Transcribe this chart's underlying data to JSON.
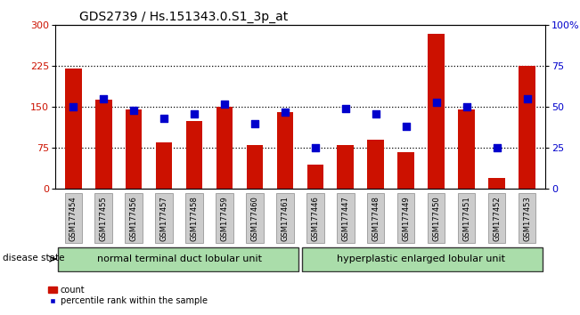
{
  "title": "GDS2739 / Hs.151343.0.S1_3p_at",
  "samples": [
    "GSM177454",
    "GSM177455",
    "GSM177456",
    "GSM177457",
    "GSM177458",
    "GSM177459",
    "GSM177460",
    "GSM177461",
    "GSM177446",
    "GSM177447",
    "GSM177448",
    "GSM177449",
    "GSM177450",
    "GSM177451",
    "GSM177452",
    "GSM177453"
  ],
  "counts": [
    220,
    163,
    145,
    85,
    125,
    150,
    80,
    140,
    45,
    80,
    90,
    68,
    285,
    145,
    20,
    225
  ],
  "percentiles": [
    50,
    55,
    48,
    43,
    46,
    52,
    40,
    47,
    25,
    49,
    46,
    38,
    53,
    50,
    25,
    55
  ],
  "bar_color": "#cc1100",
  "dot_color": "#0000cc",
  "ylim_left": [
    0,
    300
  ],
  "ylim_right": [
    0,
    100
  ],
  "yticks_left": [
    0,
    75,
    150,
    225,
    300
  ],
  "yticks_right": [
    0,
    25,
    50,
    75,
    100
  ],
  "yticklabels_right": [
    "0",
    "25",
    "50",
    "75",
    "100%"
  ],
  "group1_label": "normal terminal duct lobular unit",
  "group2_label": "hyperplastic enlarged lobular unit",
  "group1_count": 8,
  "group2_count": 8,
  "disease_state_label": "disease state",
  "legend_count_label": "count",
  "legend_percentile_label": "percentile rank within the sample",
  "group_color": "#aaddaa",
  "tick_bg_color": "#cccccc",
  "bar_width": 0.55,
  "dot_size": 40,
  "title_fontsize": 10,
  "axis_fontsize": 8,
  "tick_fontsize": 6,
  "group_fontsize": 8,
  "legend_fontsize": 7,
  "ds_fontsize": 7.5
}
